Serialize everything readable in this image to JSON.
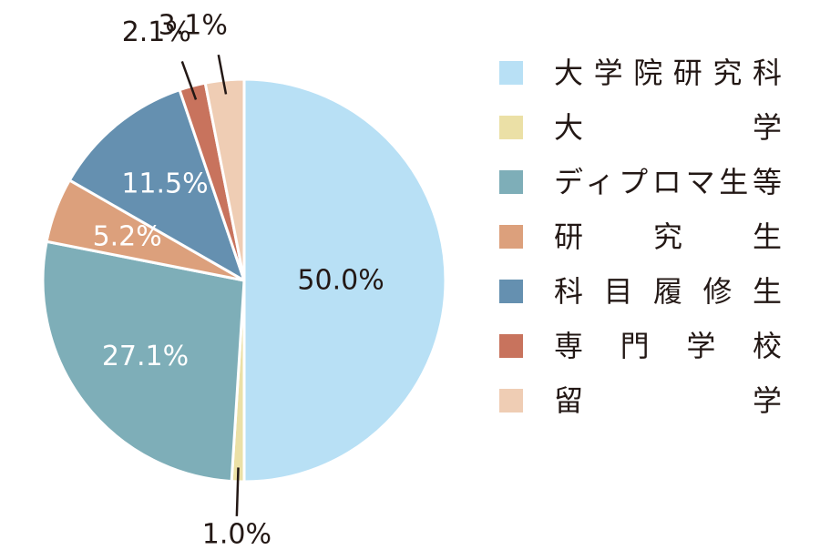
{
  "chart_data": {
    "type": "pie",
    "title": "",
    "start_angle_deg": 0,
    "direction": "clockwise",
    "legend_position": "right",
    "slices": [
      {
        "label": "大学院研究科",
        "value": 50.0,
        "display": "50.0%",
        "color": "#b8e0f5",
        "label_color": "#231815",
        "label_placement": "inside"
      },
      {
        "label": "大学",
        "value": 1.0,
        "display": "1.0%",
        "color": "#ebe0a6",
        "label_color": "#231815",
        "label_placement": "outside-bottom"
      },
      {
        "label": "ディプロマ生等",
        "value": 27.1,
        "display": "27.1%",
        "color": "#7eaeb8",
        "label_color": "#ffffff",
        "label_placement": "inside"
      },
      {
        "label": "研究生",
        "value": 5.2,
        "display": "5.2%",
        "color": "#dca07c",
        "label_color": "#ffffff",
        "label_placement": "inside"
      },
      {
        "label": "科目履修生",
        "value": 11.5,
        "display": "11.5%",
        "color": "#6590b0",
        "label_color": "#ffffff",
        "label_placement": "inside"
      },
      {
        "label": "専門学校",
        "value": 2.1,
        "display": "2.1%",
        "color": "#c8735d",
        "label_color": "#231815",
        "label_placement": "outside-top"
      },
      {
        "label": "留学",
        "value": 3.1,
        "display": "3.1%",
        "color": "#efcdb4",
        "label_color": "#231815",
        "label_placement": "outside-top"
      }
    ]
  }
}
